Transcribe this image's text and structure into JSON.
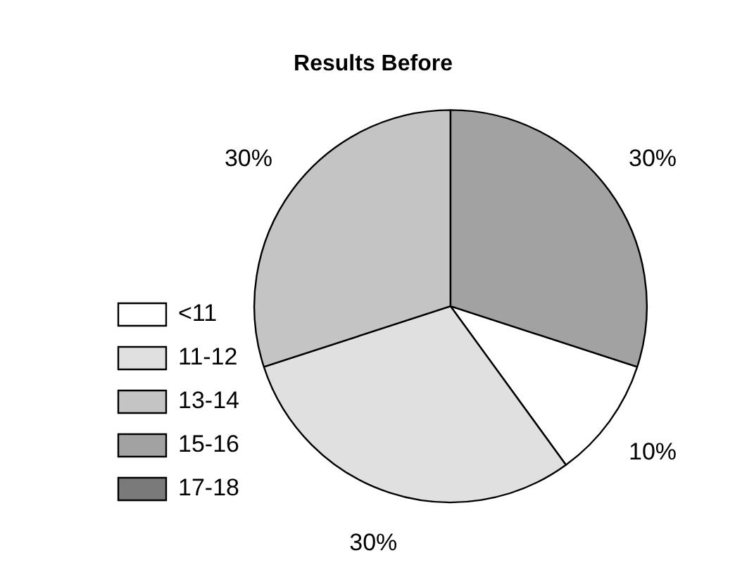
{
  "chart_data": {
    "type": "pie",
    "title": "Results Before",
    "categories": [
      "<11",
      "11-12",
      "13-14",
      "15-16",
      "17-18"
    ],
    "values": [
      10,
      30,
      30,
      30,
      0
    ],
    "colors": [
      "#ffffff",
      "#e0e0e0",
      "#c4c4c4",
      "#a2a2a2",
      "#7a7a7a"
    ],
    "value_labels": [
      "10%",
      "30%",
      "30%",
      "30%",
      null
    ],
    "legend": "bottom left"
  }
}
